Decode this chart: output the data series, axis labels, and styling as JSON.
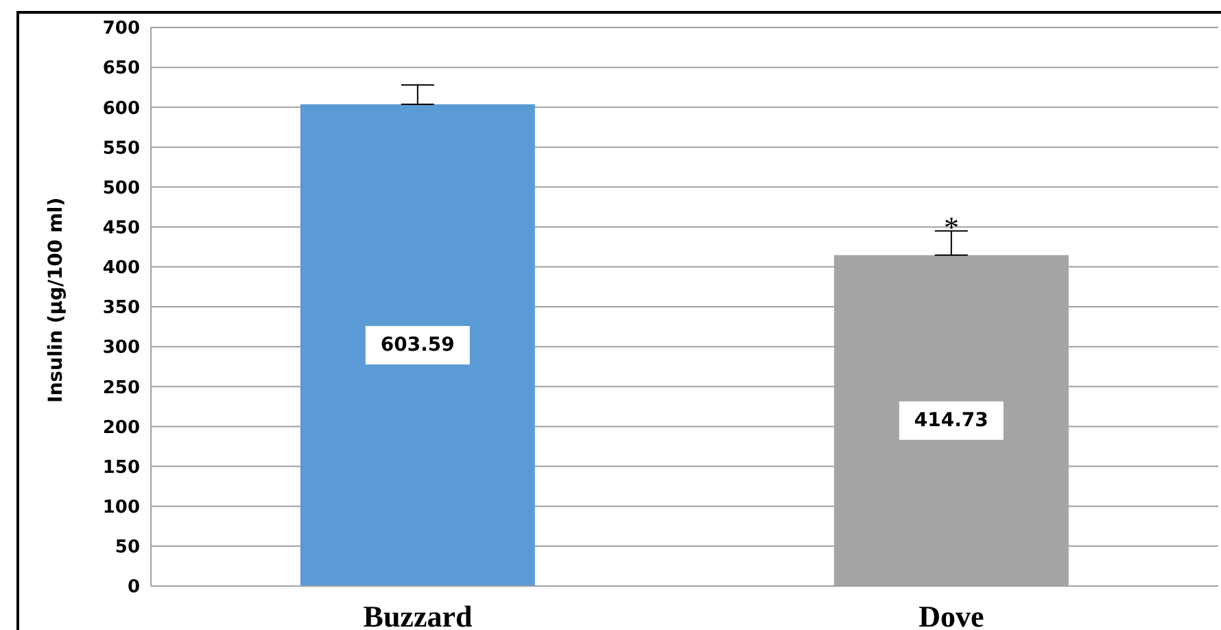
{
  "chart_data": {
    "type": "bar",
    "ylabel": "Insulin (µg/100 ml)",
    "categories": [
      "Buzzard",
      "Dove"
    ],
    "values": [
      603.59,
      414.73
    ],
    "colors": [
      "#5b9bd5",
      "#a5a5a5"
    ],
    "errors": [
      [
        603.59,
        628
      ],
      [
        414.73,
        445
      ]
    ],
    "data_labels": true,
    "annotations": [
      {
        "text": "*",
        "x": "Dove",
        "y": 450
      }
    ],
    "ylim": [
      0,
      700
    ],
    "yticks": [
      0,
      50,
      100,
      150,
      200,
      250,
      300,
      350,
      400,
      450,
      500,
      550,
      600,
      650,
      700
    ],
    "grid": "y",
    "legend": false
  }
}
